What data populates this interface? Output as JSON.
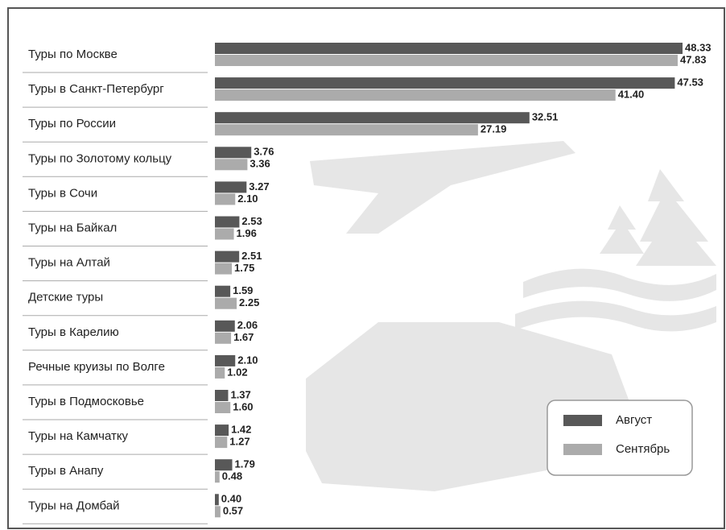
{
  "chart_data": {
    "type": "bar",
    "orientation": "horizontal",
    "categories": [
      "Туры по Москве",
      "Туры в Санкт-Петербург",
      "Туры по России",
      "Туры по Золотому кольцу",
      "Туры в Сочи",
      "Туры на Байкал",
      "Туры на Алтай",
      "Детские туры",
      "Туры в Карелию",
      "Речные круизы по Волге",
      "Туры в Подмосковье",
      "Туры на Камчатку",
      "Туры в Анапу",
      "Туры на Домбай"
    ],
    "series": [
      {
        "name": "Август",
        "color": "#585858",
        "values": [
          48.33,
          47.53,
          32.51,
          3.76,
          3.27,
          2.53,
          2.51,
          1.59,
          2.06,
          2.1,
          1.37,
          1.42,
          1.79,
          0.4
        ],
        "value_labels": [
          "48.33",
          "47.53",
          "32.51",
          "3.76",
          "3.27",
          "2.53",
          "2.51",
          "1.59",
          "2.06",
          "2.10",
          "1.37",
          "1.42",
          "1.79",
          "0.40"
        ]
      },
      {
        "name": "Сентябрь",
        "color": "#ababab",
        "values": [
          47.83,
          41.4,
          27.19,
          3.36,
          2.1,
          1.96,
          1.75,
          2.25,
          1.67,
          1.02,
          1.6,
          1.27,
          0.48,
          0.57
        ],
        "value_labels": [
          "47.83",
          "41.40",
          "27.19",
          "3.36",
          "2.10",
          "1.96",
          "1.75",
          "2.25",
          "1.67",
          "1.02",
          "1.60",
          "1.27",
          "0.48",
          "0.57"
        ]
      }
    ]
  }
}
